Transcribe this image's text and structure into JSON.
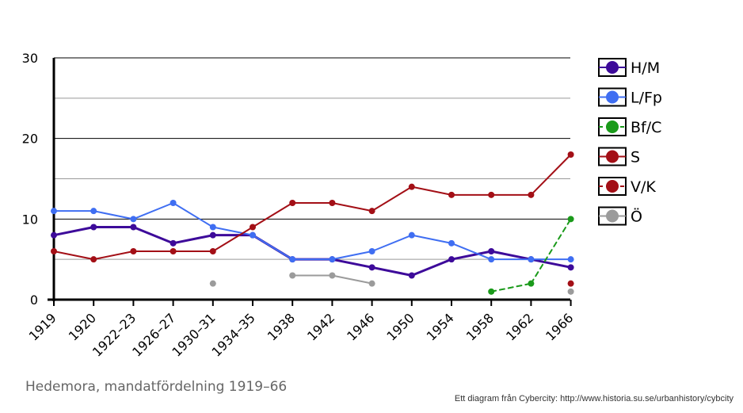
{
  "chart_data": {
    "type": "line",
    "title": "",
    "xlabel": "",
    "ylabel": "",
    "categories": [
      "1919",
      "1920",
      "1922–23",
      "1926–27",
      "1930–31",
      "1934–35",
      "1938",
      "1942",
      "1946",
      "1950",
      "1954",
      "1958",
      "1962",
      "1966"
    ],
    "ylim": [
      0,
      30
    ],
    "yticks": [
      0,
      10,
      20,
      30
    ],
    "grid": true,
    "legend_position": "right",
    "series": [
      {
        "name": "H/M",
        "color": "#3d0a9a",
        "dashed": false,
        "width": 3,
        "values": [
          8,
          9,
          9,
          7,
          8,
          8,
          5,
          5,
          4,
          3,
          5,
          6,
          5,
          4
        ]
      },
      {
        "name": "L/Fp",
        "color": "#3f6ef2",
        "dashed": false,
        "width": 2,
        "values": [
          11,
          11,
          10,
          12,
          9,
          8,
          5,
          5,
          6,
          8,
          7,
          5,
          5,
          5
        ]
      },
      {
        "name": "Bf/C",
        "color": "#1a9a1a",
        "dashed": true,
        "width": 2,
        "values": [
          null,
          null,
          null,
          null,
          null,
          null,
          null,
          null,
          null,
          null,
          null,
          1,
          2,
          10
        ]
      },
      {
        "name": "S",
        "color": "#a30f16",
        "dashed": false,
        "width": 2,
        "values": [
          6,
          5,
          6,
          6,
          6,
          9,
          12,
          12,
          11,
          14,
          13,
          13,
          13,
          18
        ]
      },
      {
        "name": "V/K",
        "color": "#a30f16",
        "dashed": true,
        "width": 2,
        "values": [
          null,
          null,
          null,
          null,
          null,
          null,
          null,
          null,
          null,
          null,
          null,
          null,
          null,
          2
        ]
      },
      {
        "name": "Ö",
        "color": "#9b9b9b",
        "dashed": false,
        "width": 2,
        "values": [
          null,
          null,
          null,
          null,
          2,
          null,
          3,
          3,
          2,
          null,
          null,
          null,
          null,
          1
        ]
      }
    ]
  },
  "caption": "Hedemora, mandatfördelning 1919–66",
  "credit": "Ett diagram från Cybercity: http://www.historia.su.se/urbanhistory/cybcity"
}
